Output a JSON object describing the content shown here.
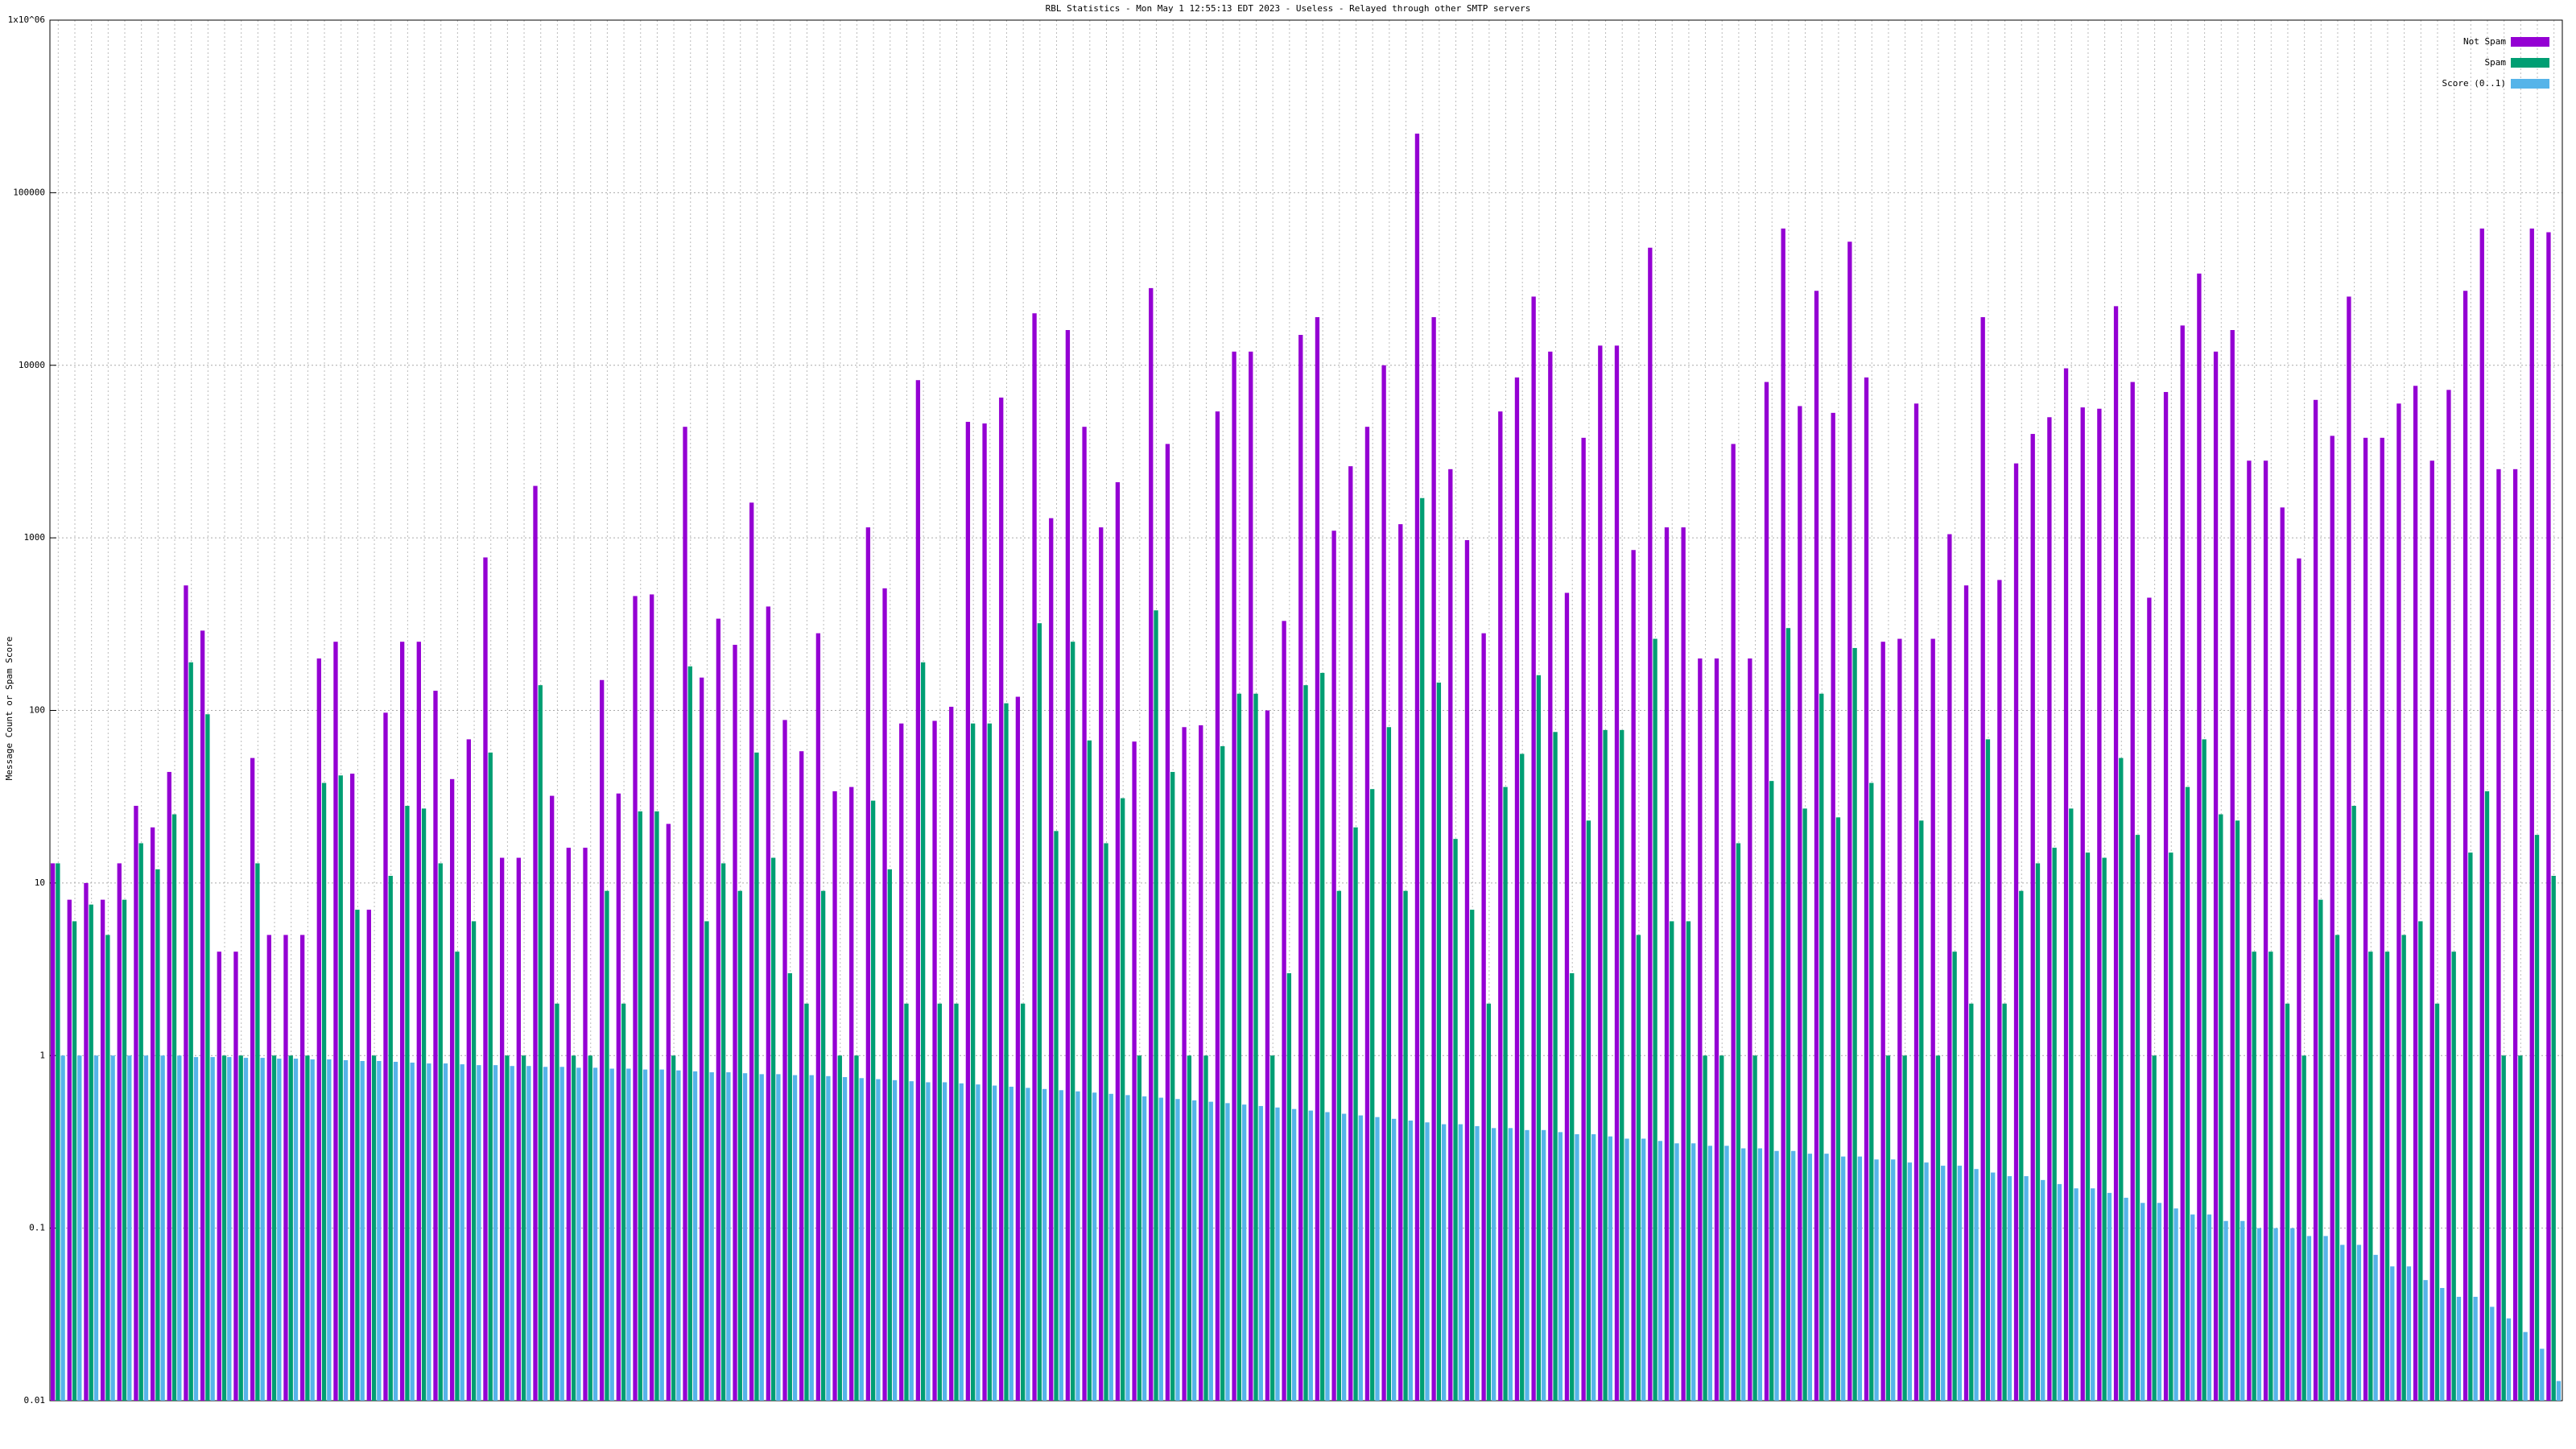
{
  "chart_data": {
    "type": "bar",
    "title": "RBL Statistics - Mon May  1 12:55:13 EDT 2023 - Useless - Relayed through other SMTP servers",
    "y_label": "Message Count or Spam Score",
    "log_scale": true,
    "grid": true,
    "legend_position": "top-right",
    "ylim": [
      0.01,
      1000000
    ],
    "yticks": [
      0.01,
      0.1,
      1,
      10,
      100,
      1000,
      10000,
      100000,
      {
        "value": 1000000,
        "label": "1x10^06"
      }
    ],
    "categories": [
      null,
      null,
      null,
      null,
      null,
      null,
      null,
      null,
      null,
      null,
      null,
      null,
      null,
      null,
      null,
      null,
      null,
      null,
      null,
      null,
      null,
      null,
      null,
      null,
      null,
      null,
      null,
      null,
      null,
      null,
      null,
      null,
      null,
      null,
      null,
      null,
      null,
      null,
      null,
      null,
      null,
      null,
      null,
      null,
      null,
      null,
      null,
      null,
      null,
      null,
      null,
      null,
      null,
      null,
      null,
      null,
      null,
      null,
      null,
      null,
      null,
      null,
      null,
      null,
      null,
      null,
      null,
      null,
      null,
      null,
      null,
      null,
      null,
      null,
      null,
      null,
      null,
      null,
      null,
      null,
      null,
      null,
      null,
      null,
      null,
      null,
      null,
      null,
      null,
      null,
      null,
      null,
      null,
      null,
      null,
      null,
      null,
      null,
      null,
      null,
      null,
      null,
      null,
      null,
      null,
      null,
      null,
      null,
      null,
      null,
      null,
      null,
      null,
      null,
      null,
      null,
      null,
      null,
      null,
      null,
      null,
      null,
      null,
      null,
      null,
      null,
      null,
      null,
      null,
      null,
      null,
      null,
      null,
      null,
      null,
      null,
      null,
      null,
      null,
      null,
      null,
      null,
      null,
      null,
      null,
      null,
      null,
      null,
      null,
      null,
      null
    ],
    "series": [
      {
        "name": "Not Spam",
        "color": "#9400d3",
        "values": [
          13,
          8,
          10,
          8,
          13,
          28,
          21,
          44,
          530,
          290,
          4,
          4,
          53,
          5,
          5,
          5,
          200,
          250,
          43,
          7,
          97,
          250,
          250,
          130,
          40,
          68,
          770,
          14,
          14,
          2000,
          32,
          16,
          16,
          150,
          33,
          460,
          470,
          22,
          4400,
          155,
          340,
          240,
          1600,
          400,
          88,
          58,
          280,
          34,
          36,
          1150,
          510,
          84,
          8200,
          87,
          105,
          4700,
          4600,
          6500,
          120,
          20000,
          1300,
          16000,
          4400,
          1150,
          2100,
          66,
          28000,
          3500,
          80,
          82,
          5400,
          12000,
          12000,
          100,
          330,
          15000,
          19000,
          1100,
          2600,
          4400,
          10000,
          1200,
          220000,
          19000,
          2500,
          970,
          280,
          5400,
          8500,
          25000,
          12000,
          480,
          3800,
          13000,
          13000,
          850,
          48000,
          1150,
          1150,
          200,
          200,
          3500,
          200,
          8000,
          62000,
          5800,
          27000,
          5300,
          52000,
          8500,
          250,
          260,
          6000,
          260,
          1050,
          530,
          19000,
          570,
          2700,
          4000,
          5000,
          9600,
          5700,
          5600,
          22000,
          8000,
          450,
          7000,
          17000,
          34000,
          12000,
          16000,
          2800,
          2800,
          1500,
          760,
          6300,
          3900,
          25000,
          3800,
          3800,
          6000,
          7600,
          2800,
          7200,
          27000,
          62000,
          2500,
          2500,
          62000,
          59000
        ]
      },
      {
        "name": "Spam",
        "color": "#009e73",
        "values": [
          13,
          6,
          7.5,
          5,
          8,
          17,
          12,
          25,
          190,
          95,
          1,
          1,
          13,
          1,
          1,
          1,
          38,
          42,
          7,
          1,
          11,
          28,
          27,
          13,
          4,
          6,
          57,
          1,
          1,
          140,
          2,
          1,
          1,
          9,
          2,
          26,
          26,
          1,
          180,
          6,
          13,
          9,
          57,
          14,
          3,
          2,
          9,
          1,
          1,
          30,
          12,
          2,
          190,
          2,
          2,
          84,
          84,
          110,
          2,
          320,
          20,
          250,
          67,
          17,
          31,
          1,
          380,
          44,
          1,
          1,
          62,
          125,
          125,
          1,
          3,
          140,
          165,
          9,
          21,
          35,
          80,
          9,
          1700,
          145,
          18,
          7,
          2,
          36,
          56,
          160,
          75,
          3,
          23,
          77,
          77,
          5,
          260,
          6,
          6,
          1,
          1,
          17,
          1,
          39,
          300,
          27,
          125,
          24,
          230,
          38,
          1,
          1,
          23,
          1,
          4,
          2,
          68,
          2,
          9,
          13,
          16,
          27,
          15,
          14,
          53,
          19,
          1,
          15,
          36,
          68,
          25,
          23,
          4,
          4,
          2,
          1,
          8,
          5,
          28,
          4,
          4,
          5,
          6,
          2,
          4,
          15,
          34,
          1,
          1,
          19,
          11
        ]
      },
      {
        "name": "Score (0..1)",
        "color": "#56b4e9",
        "values": [
          1,
          1,
          1,
          1,
          1,
          1,
          1,
          1,
          0.98,
          0.98,
          0.98,
          0.97,
          0.97,
          0.96,
          0.96,
          0.95,
          0.95,
          0.94,
          0.93,
          0.93,
          0.92,
          0.91,
          0.9,
          0.9,
          0.89,
          0.88,
          0.88,
          0.87,
          0.87,
          0.86,
          0.86,
          0.85,
          0.85,
          0.84,
          0.84,
          0.83,
          0.83,
          0.82,
          0.81,
          0.8,
          0.8,
          0.79,
          0.78,
          0.78,
          0.77,
          0.77,
          0.76,
          0.75,
          0.74,
          0.73,
          0.72,
          0.71,
          0.7,
          0.7,
          0.69,
          0.68,
          0.67,
          0.66,
          0.65,
          0.64,
          0.63,
          0.62,
          0.61,
          0.6,
          0.59,
          0.58,
          0.57,
          0.56,
          0.55,
          0.54,
          0.53,
          0.52,
          0.51,
          0.5,
          0.49,
          0.48,
          0.47,
          0.46,
          0.45,
          0.44,
          0.43,
          0.42,
          0.41,
          0.4,
          0.4,
          0.39,
          0.38,
          0.38,
          0.37,
          0.37,
          0.36,
          0.35,
          0.35,
          0.34,
          0.33,
          0.33,
          0.32,
          0.31,
          0.31,
          0.3,
          0.3,
          0.29,
          0.29,
          0.28,
          0.28,
          0.27,
          0.27,
          0.26,
          0.26,
          0.25,
          0.25,
          0.24,
          0.24,
          0.23,
          0.23,
          0.22,
          0.21,
          0.2,
          0.2,
          0.19,
          0.18,
          0.17,
          0.17,
          0.16,
          0.15,
          0.14,
          0.14,
          0.13,
          0.12,
          0.12,
          0.11,
          0.11,
          0.1,
          0.1,
          0.1,
          0.09,
          0.09,
          0.08,
          0.08,
          0.07,
          0.06,
          0.06,
          0.05,
          0.045,
          0.04,
          0.04,
          0.035,
          0.03,
          0.025,
          0.02,
          0.013
        ]
      }
    ]
  }
}
